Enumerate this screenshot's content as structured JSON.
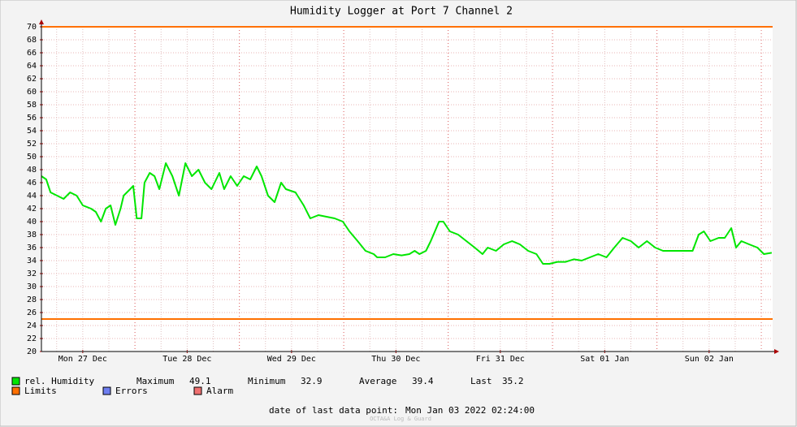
{
  "chart_data": {
    "type": "line",
    "title": "Humidity Logger at Port 7 Channel 2",
    "x": [
      2.5,
      3.6,
      4.6,
      6.1,
      7.6,
      9.1,
      10.6,
      12.0,
      13.9,
      15.0,
      16.2,
      17.3,
      18.4,
      19.5,
      20.7,
      21.4,
      22.9,
      23.6,
      24.4,
      25.5,
      26.2,
      27.4,
      28.5,
      29.6,
      31.1,
      32.6,
      34.1,
      35.6,
      37.1,
      38.6,
      40.1,
      41.6,
      43.4,
      44.5,
      46.0,
      47.5,
      49.0,
      50.5,
      52.0,
      53.1,
      54.6,
      56.1,
      57.6,
      58.7,
      60.9,
      62.8,
      64.3,
      66.2,
      67.7,
      69.9,
      71.8,
      73.3,
      75.2,
      77.0,
      78.9,
      79.7,
      81.5,
      83.4,
      85.3,
      87.1,
      88.3,
      89.4,
      90.9,
      92.0,
      93.9,
      94.9,
      96.4,
      98.3,
      100.2,
      102.1,
      103.9,
      105.1,
      107.0,
      108.8,
      110.7,
      112.5,
      114.4,
      116.3,
      117.8,
      119.3,
      121.1,
      123.0,
      124.9,
      126.7,
      128.6,
      130.5,
      132.4,
      134.2,
      136.1,
      138.0,
      139.8,
      141.7,
      143.6,
      145.4,
      148.0,
      150.3,
      152.2,
      153.6,
      154.8,
      156.3,
      158.2,
      159.6,
      161.1,
      162.2,
      163.4,
      165.2,
      167.1,
      168.6,
      170.4
    ],
    "series": [
      {
        "name": "rel. Humidity",
        "color": "#00e600",
        "values": [
          47,
          46.5,
          44.5,
          44,
          43.5,
          44.5,
          44,
          42.5,
          42,
          41.5,
          40,
          42,
          42.5,
          39.5,
          42,
          44,
          45,
          45.5,
          40.5,
          40.5,
          46,
          47.5,
          47,
          45,
          49,
          47,
          44,
          49,
          47,
          48,
          46,
          45,
          47.5,
          45,
          47,
          45.5,
          47,
          46.5,
          48.5,
          47,
          44,
          43,
          46,
          45,
          44.5,
          42.5,
          40.5,
          41,
          40.8,
          40.5,
          40,
          38.5,
          37,
          35.5,
          35,
          34.5,
          34.5,
          35,
          34.8,
          35,
          35.5,
          35,
          35.5,
          37,
          40,
          40,
          38.5,
          38,
          37,
          36,
          35,
          36,
          35.5,
          36.5,
          37,
          36.5,
          35.5,
          35,
          33.5,
          33.5,
          33.8,
          33.8,
          34.2,
          34,
          34.5,
          35,
          34.5,
          36,
          37.5,
          37,
          36,
          37,
          36,
          35.5,
          35.5,
          35.5,
          35.5,
          38,
          38.5,
          37,
          37.5,
          37.5,
          39,
          36,
          37,
          36.5,
          36,
          35,
          35.2
        ]
      }
    ],
    "limits": {
      "name": "Limits",
      "color": "#ff7000",
      "values": [
        70,
        25
      ]
    },
    "errors": {
      "name": "Errors",
      "color": "#6e7ef0"
    },
    "alarm": {
      "name": "Alarm",
      "color": "#f07070"
    },
    "stats": [
      {
        "label": "Maximum",
        "value": 49.1
      },
      {
        "label": "Minimum",
        "value": 32.9
      },
      {
        "label": "Average",
        "value": 39.4
      },
      {
        "label": "Last",
        "value": 35.2
      }
    ],
    "last_point_label": "date of last data point:",
    "last_point": "Mon Jan 03 2022 02:24:00",
    "footer": "OCTA&A Log & Guard",
    "xlim": [
      2.5,
      170.6
    ],
    "xticks": [
      {
        "value": 12,
        "label": "Mon 27 Dec"
      },
      {
        "value": 36,
        "label": "Tue 28 Dec"
      },
      {
        "value": 60,
        "label": "Wed 29 Dec"
      },
      {
        "value": 84,
        "label": "Thu 30 Dec"
      },
      {
        "value": 108,
        "label": "Fri 31 Dec"
      },
      {
        "value": 132,
        "label": "Sat 01 Jan"
      },
      {
        "value": 156,
        "label": "Sun 02 Jan"
      }
    ],
    "ylim": [
      20,
      70
    ],
    "yticks": [
      20,
      22,
      24,
      26,
      28,
      30,
      32,
      34,
      36,
      38,
      40,
      42,
      44,
      46,
      48,
      50,
      52,
      54,
      56,
      58,
      60,
      62,
      64,
      66,
      68,
      70
    ],
    "grid": true
  }
}
